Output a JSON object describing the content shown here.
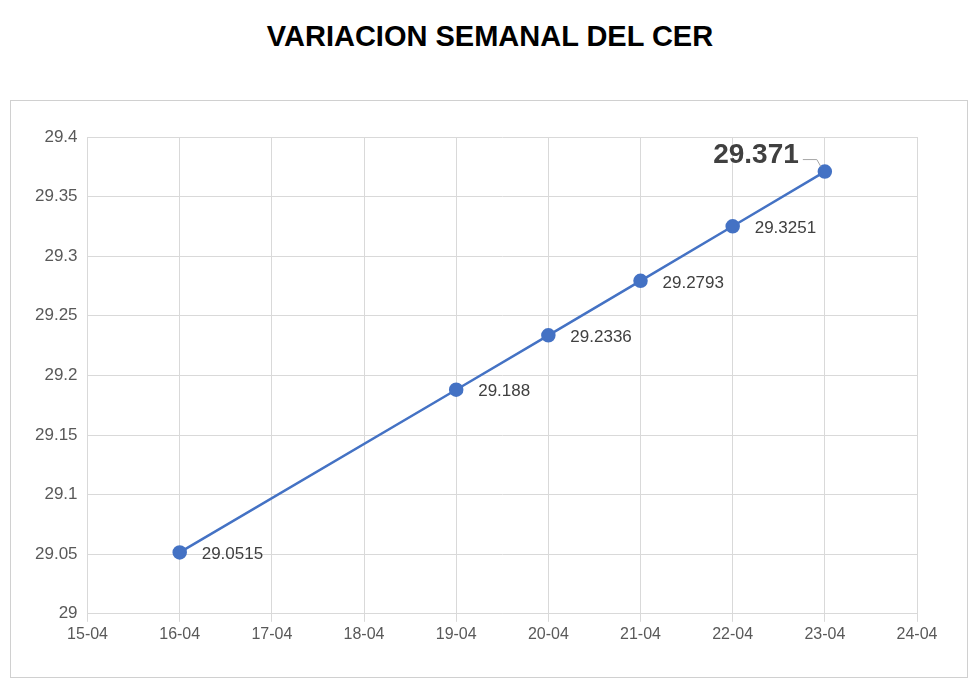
{
  "chart_data": {
    "type": "line",
    "title": "VARIACION SEMANAL DEL CER",
    "x": [
      "16-04",
      "19-04",
      "20-04",
      "21-04",
      "22-04",
      "23-04"
    ],
    "values": [
      29.0515,
      29.188,
      29.2336,
      29.2793,
      29.3251,
      29.371
    ],
    "color": "#4472c4",
    "marker": "circle",
    "line_style": "solid",
    "xlim": [
      "15-04",
      "24-04"
    ],
    "xticks": [
      "15-04",
      "16-04",
      "17-04",
      "18-04",
      "19-04",
      "20-04",
      "21-04",
      "22-04",
      "23-04",
      "24-04"
    ],
    "ylim": [
      29,
      29.4
    ],
    "yticks": [
      29,
      29.05,
      29.1,
      29.15,
      29.2,
      29.25,
      29.3,
      29.35,
      29.4
    ],
    "grid": true,
    "data_labels": true
  }
}
